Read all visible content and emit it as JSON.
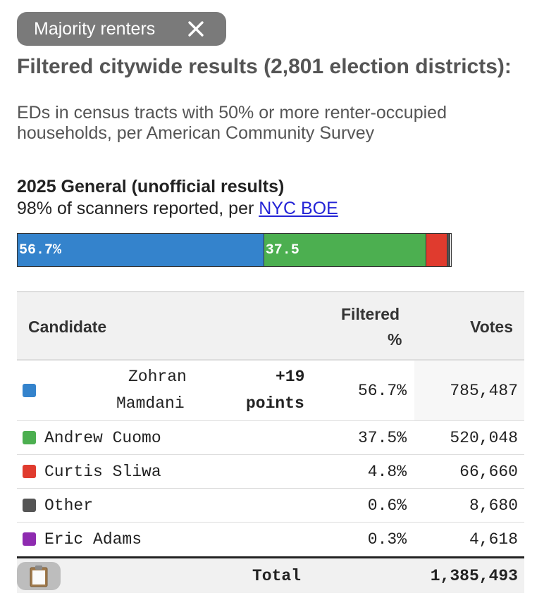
{
  "filter_chip": {
    "label": "Majority renters",
    "close_icon": "close-icon"
  },
  "heading": "Filtered citywide results (2,801 election districts):",
  "subheading": "EDs in census tracts with 50% or more renter-occupied households, per American Community Survey",
  "race": {
    "title": "2025 General (unofficial results)",
    "subtitle_prefix": "98% of scanners reported, per ",
    "link_text": "NYC BOE"
  },
  "bar": {
    "segments": [
      {
        "name": "Zohran Mamdani",
        "percent": 56.7,
        "label": "56.7%",
        "color": "#3483cc"
      },
      {
        "name": "Andrew Cuomo",
        "percent": 37.5,
        "label": "37.5",
        "color": "#4caf50"
      },
      {
        "name": "Curtis Sliwa",
        "percent": 4.8,
        "label": "",
        "color": "#e03b2e"
      },
      {
        "name": "Other",
        "percent": 0.6,
        "label": "",
        "color": "#555555"
      },
      {
        "name": "Eric Adams",
        "percent": 0.3,
        "label": "",
        "color": "#8e2bb0"
      }
    ]
  },
  "table": {
    "headers": {
      "candidate": "Candidate",
      "filtered_line1": "Filtered",
      "filtered_line2": "%",
      "votes": "Votes"
    },
    "rows": [
      {
        "name_line1": "Zohran",
        "name_line2": "Mamdani",
        "margin_line1": "+19",
        "margin_line2": "points",
        "pct": "56.7%",
        "votes": "785,487",
        "color": "#3483cc"
      },
      {
        "name": "Andrew Cuomo",
        "pct": "37.5%",
        "votes": "520,048",
        "color": "#4caf50"
      },
      {
        "name": "Curtis Sliwa",
        "pct": "4.8%",
        "votes": "66,660",
        "color": "#e03b2e"
      },
      {
        "name": "Other",
        "pct": "0.6%",
        "votes": "8,680",
        "color": "#555555"
      },
      {
        "name": "Eric Adams",
        "pct": "0.3%",
        "votes": "4,618",
        "color": "#8e2bb0"
      }
    ],
    "total": {
      "label": "Total",
      "votes": "1,385,493",
      "copy_icon": "clipboard-icon"
    }
  }
}
